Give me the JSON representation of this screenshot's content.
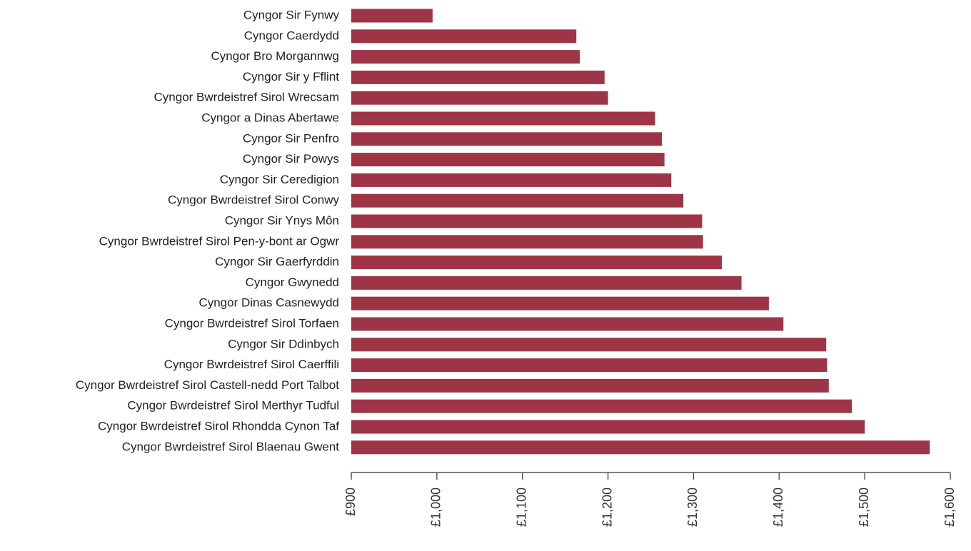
{
  "chart_data": {
    "type": "bar",
    "orientation": "horizontal",
    "categories": [
      "Cyngor Sir Fynwy",
      "Cyngor Caerdydd",
      "Cyngor Bro Morgannwg",
      "Cyngor Sir y Fflint",
      "Cyngor Bwrdeistref Sirol Wrecsam",
      "Cyngor a Dinas Abertawe",
      "Cyngor Sir Penfro",
      "Cyngor Sir Powys",
      "Cyngor Sir Ceredigion",
      "Cyngor Bwrdeistref Sirol Conwy",
      "Cyngor Sir Ynys Môn",
      "Cyngor Bwrdeistref Sirol Pen-y-bont ar Ogwr",
      "Cyngor Sir Gaerfyrddin",
      "Cyngor Gwynedd",
      "Cyngor Dinas Casnewydd",
      "Cyngor Bwrdeistref Sirol Torfaen",
      "Cyngor Sir Ddinbych",
      "Cyngor Bwrdeistref Sirol Caerffili",
      "Cyngor Bwrdeistref Sirol Castell-nedd Port Talbot",
      "Cyngor Bwrdeistref Sirol Merthyr Tudful",
      "Cyngor Bwrdeistref Sirol Rhondda Cynon Taf",
      "Cyngor Bwrdeistref Sirol Blaenau Gwent"
    ],
    "values": [
      995,
      1163,
      1167,
      1196,
      1200,
      1255,
      1263,
      1266,
      1274,
      1288,
      1310,
      1311,
      1333,
      1356,
      1388,
      1405,
      1455,
      1456,
      1458,
      1485,
      1500,
      1576
    ],
    "color": "#9e3546",
    "xlim": [
      900,
      1600
    ],
    "xticks": [
      {
        "value": 900,
        "label": "£900"
      },
      {
        "value": 1000,
        "label": "£1,000"
      },
      {
        "value": 1100,
        "label": "£1,100"
      },
      {
        "value": 1200,
        "label": "£1,200"
      },
      {
        "value": 1300,
        "label": "£1,300"
      },
      {
        "value": 1400,
        "label": "£1,400"
      },
      {
        "value": 1500,
        "label": "£1,500"
      },
      {
        "value": 1600,
        "label": "£1,600"
      }
    ],
    "grid": false
  }
}
